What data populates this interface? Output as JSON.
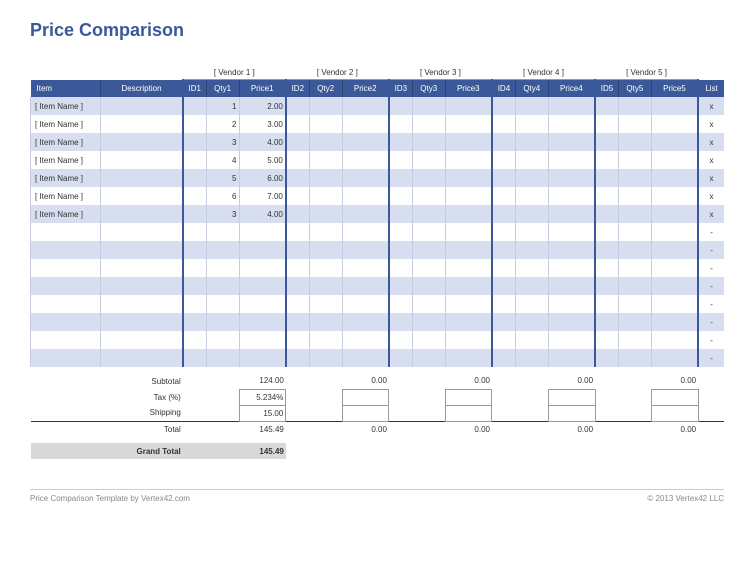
{
  "title": "Price Comparison",
  "vendors": [
    {
      "label": "[ Vendor 1 ]",
      "id_hdr": "ID1",
      "qty_hdr": "Qty1",
      "price_hdr": "Price1"
    },
    {
      "label": "[ Vendor 2 ]",
      "id_hdr": "ID2",
      "qty_hdr": "Qty2",
      "price_hdr": "Price2"
    },
    {
      "label": "[ Vendor 3 ]",
      "id_hdr": "ID3",
      "qty_hdr": "Qty3",
      "price_hdr": "Price3"
    },
    {
      "label": "[ Vendor 4 ]",
      "id_hdr": "ID4",
      "qty_hdr": "Qty4",
      "price_hdr": "Price4"
    },
    {
      "label": "[ Vendor 5 ]",
      "id_hdr": "ID5",
      "qty_hdr": "Qty5",
      "price_hdr": "Price5"
    }
  ],
  "headers": {
    "item": "Item",
    "desc": "Description",
    "list": "List"
  },
  "rows": [
    {
      "item": "[ Item Name ]",
      "desc": "",
      "v": [
        {
          "id": "",
          "qty": "1",
          "price": "2.00"
        },
        {
          "id": "",
          "qty": "",
          "price": ""
        },
        {
          "id": "",
          "qty": "",
          "price": ""
        },
        {
          "id": "",
          "qty": "",
          "price": ""
        },
        {
          "id": "",
          "qty": "",
          "price": ""
        }
      ],
      "list": "x"
    },
    {
      "item": "[ Item Name ]",
      "desc": "",
      "v": [
        {
          "id": "",
          "qty": "2",
          "price": "3.00"
        },
        {
          "id": "",
          "qty": "",
          "price": ""
        },
        {
          "id": "",
          "qty": "",
          "price": ""
        },
        {
          "id": "",
          "qty": "",
          "price": ""
        },
        {
          "id": "",
          "qty": "",
          "price": ""
        }
      ],
      "list": "x"
    },
    {
      "item": "[ Item Name ]",
      "desc": "",
      "v": [
        {
          "id": "",
          "qty": "3",
          "price": "4.00"
        },
        {
          "id": "",
          "qty": "",
          "price": ""
        },
        {
          "id": "",
          "qty": "",
          "price": ""
        },
        {
          "id": "",
          "qty": "",
          "price": ""
        },
        {
          "id": "",
          "qty": "",
          "price": ""
        }
      ],
      "list": "x"
    },
    {
      "item": "[ Item Name ]",
      "desc": "",
      "v": [
        {
          "id": "",
          "qty": "4",
          "price": "5.00"
        },
        {
          "id": "",
          "qty": "",
          "price": ""
        },
        {
          "id": "",
          "qty": "",
          "price": ""
        },
        {
          "id": "",
          "qty": "",
          "price": ""
        },
        {
          "id": "",
          "qty": "",
          "price": ""
        }
      ],
      "list": "x"
    },
    {
      "item": "[ Item Name ]",
      "desc": "",
      "v": [
        {
          "id": "",
          "qty": "5",
          "price": "6.00"
        },
        {
          "id": "",
          "qty": "",
          "price": ""
        },
        {
          "id": "",
          "qty": "",
          "price": ""
        },
        {
          "id": "",
          "qty": "",
          "price": ""
        },
        {
          "id": "",
          "qty": "",
          "price": ""
        }
      ],
      "list": "x"
    },
    {
      "item": "[ Item Name ]",
      "desc": "",
      "v": [
        {
          "id": "",
          "qty": "6",
          "price": "7.00"
        },
        {
          "id": "",
          "qty": "",
          "price": ""
        },
        {
          "id": "",
          "qty": "",
          "price": ""
        },
        {
          "id": "",
          "qty": "",
          "price": ""
        },
        {
          "id": "",
          "qty": "",
          "price": ""
        }
      ],
      "list": "x"
    },
    {
      "item": "[ Item Name ]",
      "desc": "",
      "v": [
        {
          "id": "",
          "qty": "3",
          "price": "4.00"
        },
        {
          "id": "",
          "qty": "",
          "price": ""
        },
        {
          "id": "",
          "qty": "",
          "price": ""
        },
        {
          "id": "",
          "qty": "",
          "price": ""
        },
        {
          "id": "",
          "qty": "",
          "price": ""
        }
      ],
      "list": "x"
    },
    {
      "item": "",
      "desc": "",
      "v": [
        {
          "id": "",
          "qty": "",
          "price": ""
        },
        {
          "id": "",
          "qty": "",
          "price": ""
        },
        {
          "id": "",
          "qty": "",
          "price": ""
        },
        {
          "id": "",
          "qty": "",
          "price": ""
        },
        {
          "id": "",
          "qty": "",
          "price": ""
        }
      ],
      "list": "-"
    },
    {
      "item": "",
      "desc": "",
      "v": [
        {
          "id": "",
          "qty": "",
          "price": ""
        },
        {
          "id": "",
          "qty": "",
          "price": ""
        },
        {
          "id": "",
          "qty": "",
          "price": ""
        },
        {
          "id": "",
          "qty": "",
          "price": ""
        },
        {
          "id": "",
          "qty": "",
          "price": ""
        }
      ],
      "list": "-"
    },
    {
      "item": "",
      "desc": "",
      "v": [
        {
          "id": "",
          "qty": "",
          "price": ""
        },
        {
          "id": "",
          "qty": "",
          "price": ""
        },
        {
          "id": "",
          "qty": "",
          "price": ""
        },
        {
          "id": "",
          "qty": "",
          "price": ""
        },
        {
          "id": "",
          "qty": "",
          "price": ""
        }
      ],
      "list": "-"
    },
    {
      "item": "",
      "desc": "",
      "v": [
        {
          "id": "",
          "qty": "",
          "price": ""
        },
        {
          "id": "",
          "qty": "",
          "price": ""
        },
        {
          "id": "",
          "qty": "",
          "price": ""
        },
        {
          "id": "",
          "qty": "",
          "price": ""
        },
        {
          "id": "",
          "qty": "",
          "price": ""
        }
      ],
      "list": "-"
    },
    {
      "item": "",
      "desc": "",
      "v": [
        {
          "id": "",
          "qty": "",
          "price": ""
        },
        {
          "id": "",
          "qty": "",
          "price": ""
        },
        {
          "id": "",
          "qty": "",
          "price": ""
        },
        {
          "id": "",
          "qty": "",
          "price": ""
        },
        {
          "id": "",
          "qty": "",
          "price": ""
        }
      ],
      "list": "-"
    },
    {
      "item": "",
      "desc": "",
      "v": [
        {
          "id": "",
          "qty": "",
          "price": ""
        },
        {
          "id": "",
          "qty": "",
          "price": ""
        },
        {
          "id": "",
          "qty": "",
          "price": ""
        },
        {
          "id": "",
          "qty": "",
          "price": ""
        },
        {
          "id": "",
          "qty": "",
          "price": ""
        }
      ],
      "list": "-"
    },
    {
      "item": "",
      "desc": "",
      "v": [
        {
          "id": "",
          "qty": "",
          "price": ""
        },
        {
          "id": "",
          "qty": "",
          "price": ""
        },
        {
          "id": "",
          "qty": "",
          "price": ""
        },
        {
          "id": "",
          "qty": "",
          "price": ""
        },
        {
          "id": "",
          "qty": "",
          "price": ""
        }
      ],
      "list": "-"
    },
    {
      "item": "",
      "desc": "",
      "v": [
        {
          "id": "",
          "qty": "",
          "price": ""
        },
        {
          "id": "",
          "qty": "",
          "price": ""
        },
        {
          "id": "",
          "qty": "",
          "price": ""
        },
        {
          "id": "",
          "qty": "",
          "price": ""
        },
        {
          "id": "",
          "qty": "",
          "price": ""
        }
      ],
      "list": "-"
    }
  ],
  "summary": {
    "subtotal_label": "Subtotal",
    "tax_label": "Tax (%)",
    "shipping_label": "Shipping",
    "total_label": "Total",
    "grand_total_label": "Grand Total",
    "subtotal": [
      "124.00",
      "0.00",
      "0.00",
      "0.00",
      "0.00"
    ],
    "tax": [
      "5.234%",
      "",
      "",
      "",
      ""
    ],
    "shipping": [
      "15.00",
      "",
      "",
      "",
      ""
    ],
    "total": [
      "145.49",
      "0.00",
      "0.00",
      "0.00",
      "0.00"
    ],
    "grand_total": "145.49"
  },
  "footer": {
    "left": "Price Comparison Template by Vertex42.com",
    "right": "© 2013 Vertex42 LLC"
  },
  "colors": {
    "header_bg": "#3b5998",
    "alt_row": "#d6deef",
    "border": "#c5cde0"
  }
}
